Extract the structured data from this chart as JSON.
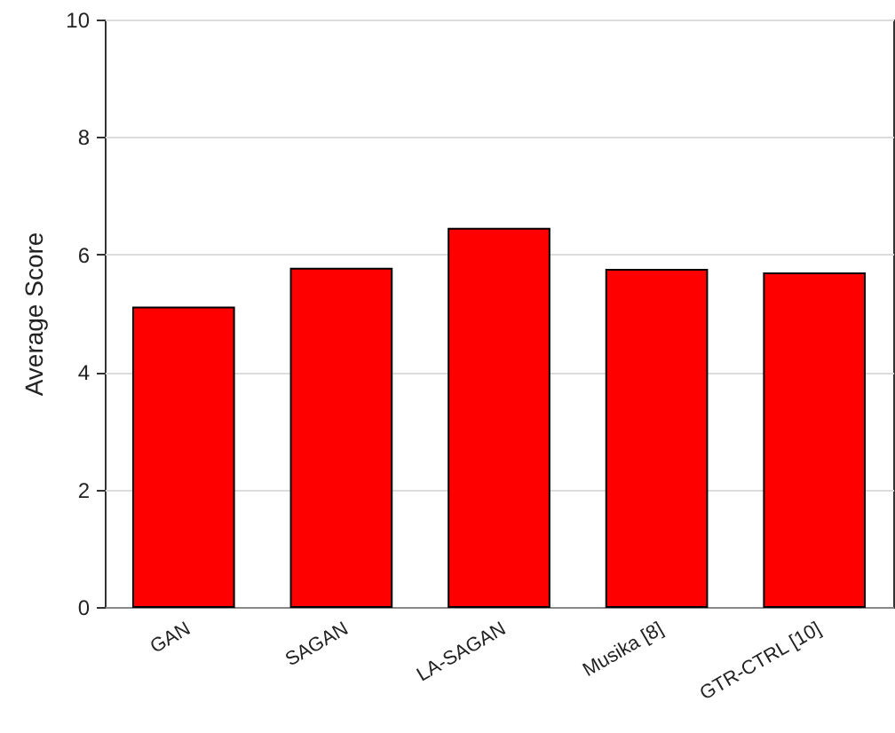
{
  "chart_data": {
    "type": "bar",
    "ylabel": "Average Score",
    "categories": [
      "GAN",
      "SAGAN",
      "LA-SAGAN",
      "Musika [8]",
      "GTR-CTRL [10]"
    ],
    "values": [
      5.1,
      5.76,
      6.44,
      5.74,
      5.68
    ],
    "color": "#ff0000",
    "ylim": [
      0,
      10
    ],
    "yticks": [
      0,
      2,
      4,
      6,
      8,
      10
    ],
    "grid": "y"
  }
}
